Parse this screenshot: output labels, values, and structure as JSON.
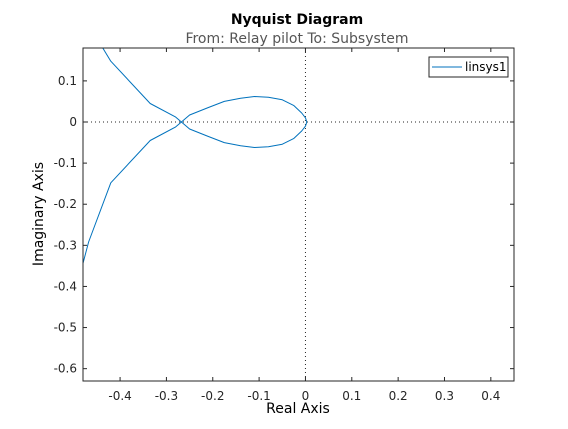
{
  "chart_data": {
    "type": "line",
    "title": "Nyquist Diagram",
    "subtitle": "From: Relay pilot  To: Subsystem",
    "xlabel": "Real Axis",
    "ylabel": "Imaginary Axis",
    "xlim": [
      -0.48,
      0.45
    ],
    "ylim": [
      -0.63,
      0.18
    ],
    "xticks": [
      -0.4,
      -0.3,
      -0.2,
      -0.1,
      0,
      0.1,
      0.2,
      0.3,
      0.4
    ],
    "xtick_labels": [
      "-0.4",
      "-0.3",
      "-0.2",
      "-0.1",
      "0",
      "0.1",
      "0.2",
      "0.3",
      "0.4"
    ],
    "yticks": [
      0.1,
      0,
      -0.1,
      -0.2,
      -0.3,
      -0.4,
      -0.5,
      -0.6
    ],
    "ytick_labels": [
      "0.1",
      "0",
      "-0.1",
      "-0.2",
      "-0.3",
      "-0.4",
      "-0.5",
      "-0.6"
    ],
    "grid": false,
    "legend_position": "top-right",
    "zero_lines": true,
    "series": [
      {
        "name": "linsys1",
        "color": "#0072BD",
        "x": [
          -0.485,
          -0.468,
          -0.42,
          -0.335,
          -0.28,
          -0.25,
          -0.21,
          -0.175,
          -0.14,
          -0.11,
          -0.08,
          -0.05,
          -0.025,
          -0.008,
          0.0,
          0.003,
          0.0,
          -0.008,
          -0.025,
          -0.05,
          -0.08,
          -0.11,
          -0.14,
          -0.175,
          -0.21,
          -0.25,
          -0.28,
          -0.335,
          -0.42,
          -0.44
        ],
        "y": [
          -0.365,
          -0.292,
          -0.148,
          -0.045,
          -0.012,
          0.017,
          0.035,
          0.05,
          0.058,
          0.062,
          0.06,
          0.054,
          0.04,
          0.022,
          0.01,
          0.0,
          -0.01,
          -0.022,
          -0.04,
          -0.054,
          -0.06,
          -0.062,
          -0.058,
          -0.05,
          -0.035,
          -0.017,
          0.012,
          0.045,
          0.148,
          0.185
        ]
      }
    ]
  }
}
